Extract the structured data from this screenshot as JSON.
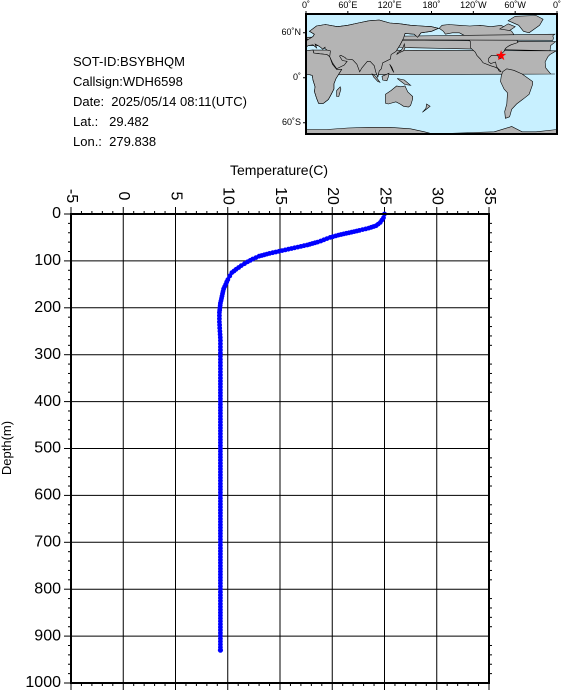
{
  "info": {
    "sot_id": "SOT-ID:BSYBHQM",
    "callsign": "Callsign:WDH6598",
    "date": "Date:  2025/05/14 08:11(UTC)",
    "lat": "Lat.:   29.482",
    "lon": "Lon.:  279.838"
  },
  "map": {
    "lon_labels": [
      "0˚",
      "60˚E",
      "120˚E",
      "180˚",
      "120˚W",
      "60˚W",
      "0˚"
    ],
    "lat_labels": [
      "60˚N",
      "0˚",
      "60˚S"
    ],
    "ocean_color": "#c8f0ff",
    "land_color": "#b4b4b4",
    "marker_color": "#ff0000",
    "marker_lat": 29.482,
    "marker_lon": 279.838
  },
  "chart_data": {
    "type": "line",
    "xlabel": "Temperature(C)",
    "ylabel": "Depth(m)",
    "xlim": [
      -5,
      35
    ],
    "ylim": [
      0,
      1000
    ],
    "y_inverted": true,
    "x_axis_position": "top",
    "x_ticks": [
      "-5",
      "0",
      "5",
      "10",
      "15",
      "20",
      "25",
      "30",
      "35"
    ],
    "y_ticks": [
      "0",
      "100",
      "200",
      "300",
      "400",
      "500",
      "600",
      "700",
      "800",
      "900",
      "1000"
    ],
    "grid": true,
    "series_color": "#0000ff",
    "series": [
      {
        "x": [
          25.0,
          24.9,
          24.6,
          24.2,
          23.5,
          22.6,
          21.6,
          20.6,
          19.8,
          19.2,
          18.6,
          17.6,
          16.4,
          15.2,
          14.0,
          13.0,
          12.4,
          11.9,
          11.3,
          10.8,
          10.4,
          10.2,
          10.0,
          9.8,
          9.6,
          9.5,
          9.4,
          9.3,
          9.25,
          9.2,
          9.2,
          9.25,
          9.3,
          9.3,
          9.3,
          9.3,
          9.3,
          9.3,
          9.3,
          9.3,
          9.3,
          9.3,
          9.3,
          9.3,
          9.3,
          9.3,
          9.3
        ],
        "y": [
          0,
          8,
          18,
          25,
          30,
          35,
          40,
          45,
          50,
          55,
          60,
          66,
          72,
          78,
          84,
          90,
          96,
          102,
          110,
          118,
          125,
          132,
          140,
          150,
          160,
          170,
          180,
          190,
          200,
          210,
          230,
          250,
          270,
          290,
          310,
          350,
          400,
          450,
          500,
          550,
          600,
          650,
          700,
          750,
          800,
          850,
          930
        ]
      }
    ]
  }
}
